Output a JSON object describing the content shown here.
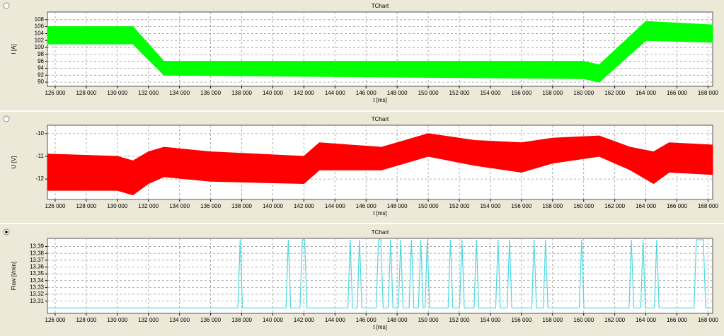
{
  "chart_data": [
    {
      "type": "band",
      "title": "TChart",
      "xlabel": "t [ms]",
      "ylabel": "I [A]",
      "grid": true,
      "x": [
        125500,
        131000,
        133000,
        160000,
        161000,
        164000,
        168300
      ],
      "series": [
        {
          "color": "#00ff00",
          "values": [
            106,
            106,
            96,
            96,
            95,
            107.5,
            106.5
          ]
        },
        {
          "color": "#00ff00",
          "values": [
            101,
            101,
            92,
            91,
            90,
            102,
            101.5
          ]
        }
      ],
      "xlim": [
        125500,
        168300
      ],
      "xticks": [
        {
          "value": 126000,
          "label": "126 000"
        },
        {
          "value": 128000,
          "label": "128 000"
        },
        {
          "value": 130000,
          "label": "130 000"
        },
        {
          "value": 132000,
          "label": "132 000"
        },
        {
          "value": 134000,
          "label": "134 000"
        },
        {
          "value": 136000,
          "label": "136 000"
        },
        {
          "value": 138000,
          "label": "138 000"
        },
        {
          "value": 140000,
          "label": "140 000"
        },
        {
          "value": 142000,
          "label": "142 000"
        },
        {
          "value": 144000,
          "label": "144 000"
        },
        {
          "value": 146000,
          "label": "146 000"
        },
        {
          "value": 148000,
          "label": "148 000"
        },
        {
          "value": 150000,
          "label": "150 000"
        },
        {
          "value": 152000,
          "label": "152 000"
        },
        {
          "value": 154000,
          "label": "154 000"
        },
        {
          "value": 156000,
          "label": "156 000"
        },
        {
          "value": 158000,
          "label": "158 000"
        },
        {
          "value": 160000,
          "label": "160 000"
        },
        {
          "value": 162000,
          "label": "162 000"
        },
        {
          "value": 164000,
          "label": "164 000"
        },
        {
          "value": 166000,
          "label": "166 000"
        },
        {
          "value": 168000,
          "label": "168 000"
        }
      ],
      "ylim": [
        88.8,
        110.2
      ],
      "yticks": [
        90,
        92,
        94,
        96,
        98,
        100,
        102,
        104,
        106,
        108
      ]
    },
    {
      "type": "band",
      "title": "TChart",
      "xlabel": "t [ms]",
      "ylabel": "U [V]",
      "grid": true,
      "x": [
        125500,
        130000,
        131000,
        132000,
        133000,
        136000,
        142000,
        143000,
        147000,
        150000,
        153000,
        156000,
        158000,
        161000,
        163000,
        164500,
        165500,
        168300
      ],
      "series": [
        {
          "color": "#ff0000",
          "values": [
            -10.9,
            -11,
            -11.2,
            -10.8,
            -10.6,
            -10.8,
            -11,
            -10.4,
            -10.6,
            -10,
            -10.3,
            -10.4,
            -10.2,
            -10.1,
            -10.6,
            -10.8,
            -10.4,
            -10.5
          ]
        },
        {
          "color": "#ff0000",
          "values": [
            -12.5,
            -12.5,
            -12.7,
            -12.2,
            -11.9,
            -12.1,
            -12.2,
            -11.6,
            -11.6,
            -11,
            -11.4,
            -11.7,
            -11.3,
            -11,
            -11.6,
            -12.2,
            -11.7,
            -11.8
          ]
        }
      ],
      "xlim": [
        125500,
        168300
      ],
      "xticks": [
        {
          "value": 126000,
          "label": "126 000"
        },
        {
          "value": 128000,
          "label": "128 000"
        },
        {
          "value": 130000,
          "label": "130 000"
        },
        {
          "value": 132000,
          "label": "132 000"
        },
        {
          "value": 134000,
          "label": "134 000"
        },
        {
          "value": 136000,
          "label": "136 000"
        },
        {
          "value": 138000,
          "label": "138 000"
        },
        {
          "value": 140000,
          "label": "140 000"
        },
        {
          "value": 142000,
          "label": "142 000"
        },
        {
          "value": 144000,
          "label": "144 000"
        },
        {
          "value": 146000,
          "label": "146 000"
        },
        {
          "value": 148000,
          "label": "148 000"
        },
        {
          "value": 150000,
          "label": "150 000"
        },
        {
          "value": 152000,
          "label": "152 000"
        },
        {
          "value": 154000,
          "label": "154 000"
        },
        {
          "value": 156000,
          "label": "156 000"
        },
        {
          "value": 158000,
          "label": "158 000"
        },
        {
          "value": 160000,
          "label": "160 000"
        },
        {
          "value": 162000,
          "label": "162 000"
        },
        {
          "value": 164000,
          "label": "164 000"
        },
        {
          "value": 166000,
          "label": "166 000"
        },
        {
          "value": 168000,
          "label": "168 000"
        }
      ],
      "ylim": [
        -12.9,
        -9.63
      ],
      "yticks": [
        -12,
        -11,
        -10
      ]
    },
    {
      "type": "line",
      "title": "TChart",
      "xlabel": "t [ms]",
      "ylabel": "Flow [l/min]",
      "grid": true,
      "x": [
        125500,
        137750,
        137900,
        138050,
        140850,
        141000,
        141150,
        141750,
        141900,
        142050,
        142200,
        144830,
        144980,
        145130,
        145430,
        145580,
        145730,
        146650,
        146800,
        146950,
        147100,
        147430,
        147580,
        147730,
        148080,
        148230,
        148380,
        148770,
        148920,
        149070,
        149370,
        149520,
        149670,
        149790,
        149940,
        150090,
        151280,
        151430,
        151580,
        152020,
        152170,
        152320,
        152950,
        153100,
        153250,
        154340,
        154490,
        154640,
        155080,
        155230,
        155380,
        156660,
        156810,
        156960,
        157400,
        157550,
        157700,
        159720,
        159870,
        160020,
        162920,
        163070,
        163220,
        163670,
        163820,
        163970,
        164550,
        164700,
        164850,
        167100,
        167250,
        167700,
        167850,
        168300
      ],
      "series": [
        {
          "color": "#4fd8e0",
          "values": [
            13.3,
            13.3,
            13.4,
            13.3,
            13.3,
            13.4,
            13.3,
            13.3,
            13.4,
            13.4,
            13.3,
            13.3,
            13.4,
            13.3,
            13.3,
            13.4,
            13.3,
            13.3,
            13.4,
            13.4,
            13.3,
            13.3,
            13.4,
            13.3,
            13.3,
            13.4,
            13.3,
            13.3,
            13.4,
            13.3,
            13.3,
            13.4,
            13.3,
            13.3,
            13.4,
            13.3,
            13.3,
            13.4,
            13.3,
            13.3,
            13.4,
            13.3,
            13.3,
            13.4,
            13.3,
            13.3,
            13.4,
            13.3,
            13.3,
            13.4,
            13.3,
            13.3,
            13.4,
            13.3,
            13.3,
            13.4,
            13.3,
            13.3,
            13.4,
            13.3,
            13.3,
            13.4,
            13.3,
            13.3,
            13.4,
            13.3,
            13.3,
            13.4,
            13.3,
            13.3,
            13.4,
            13.4,
            13.3,
            13.3
          ]
        }
      ],
      "xlim": [
        125500,
        168300
      ],
      "xticks": [
        {
          "value": 126000,
          "label": "126 000"
        },
        {
          "value": 128000,
          "label": "128 000"
        },
        {
          "value": 130000,
          "label": "130 000"
        },
        {
          "value": 132000,
          "label": "132 000"
        },
        {
          "value": 134000,
          "label": "134 000"
        },
        {
          "value": 136000,
          "label": "136 000"
        },
        {
          "value": 138000,
          "label": "138 000"
        },
        {
          "value": 140000,
          "label": "140 000"
        },
        {
          "value": 142000,
          "label": "142 000"
        },
        {
          "value": 144000,
          "label": "144 000"
        },
        {
          "value": 146000,
          "label": "146 000"
        },
        {
          "value": 148000,
          "label": "148 000"
        },
        {
          "value": 150000,
          "label": "150 000"
        },
        {
          "value": 152000,
          "label": "152 000"
        },
        {
          "value": 154000,
          "label": "154 000"
        },
        {
          "value": 156000,
          "label": "156 000"
        },
        {
          "value": 158000,
          "label": "158 000"
        },
        {
          "value": 160000,
          "label": "160 000"
        },
        {
          "value": 162000,
          "label": "162 000"
        },
        {
          "value": 164000,
          "label": "164 000"
        },
        {
          "value": 166000,
          "label": "166 000"
        },
        {
          "value": 168000,
          "label": "168 000"
        }
      ],
      "ylim": [
        13.292,
        13.402
      ],
      "yticks": [
        {
          "value": 13.31,
          "label": "13,31"
        },
        {
          "value": 13.32,
          "label": "13,32"
        },
        {
          "value": 13.33,
          "label": "13,33"
        },
        {
          "value": 13.34,
          "label": "13,34"
        },
        {
          "value": 13.35,
          "label": "13,35"
        },
        {
          "value": 13.36,
          "label": "13,36"
        },
        {
          "value": 13.37,
          "label": "13,37"
        },
        {
          "value": 13.38,
          "label": "13,38"
        },
        {
          "value": 13.39,
          "label": "13,39"
        }
      ]
    }
  ]
}
